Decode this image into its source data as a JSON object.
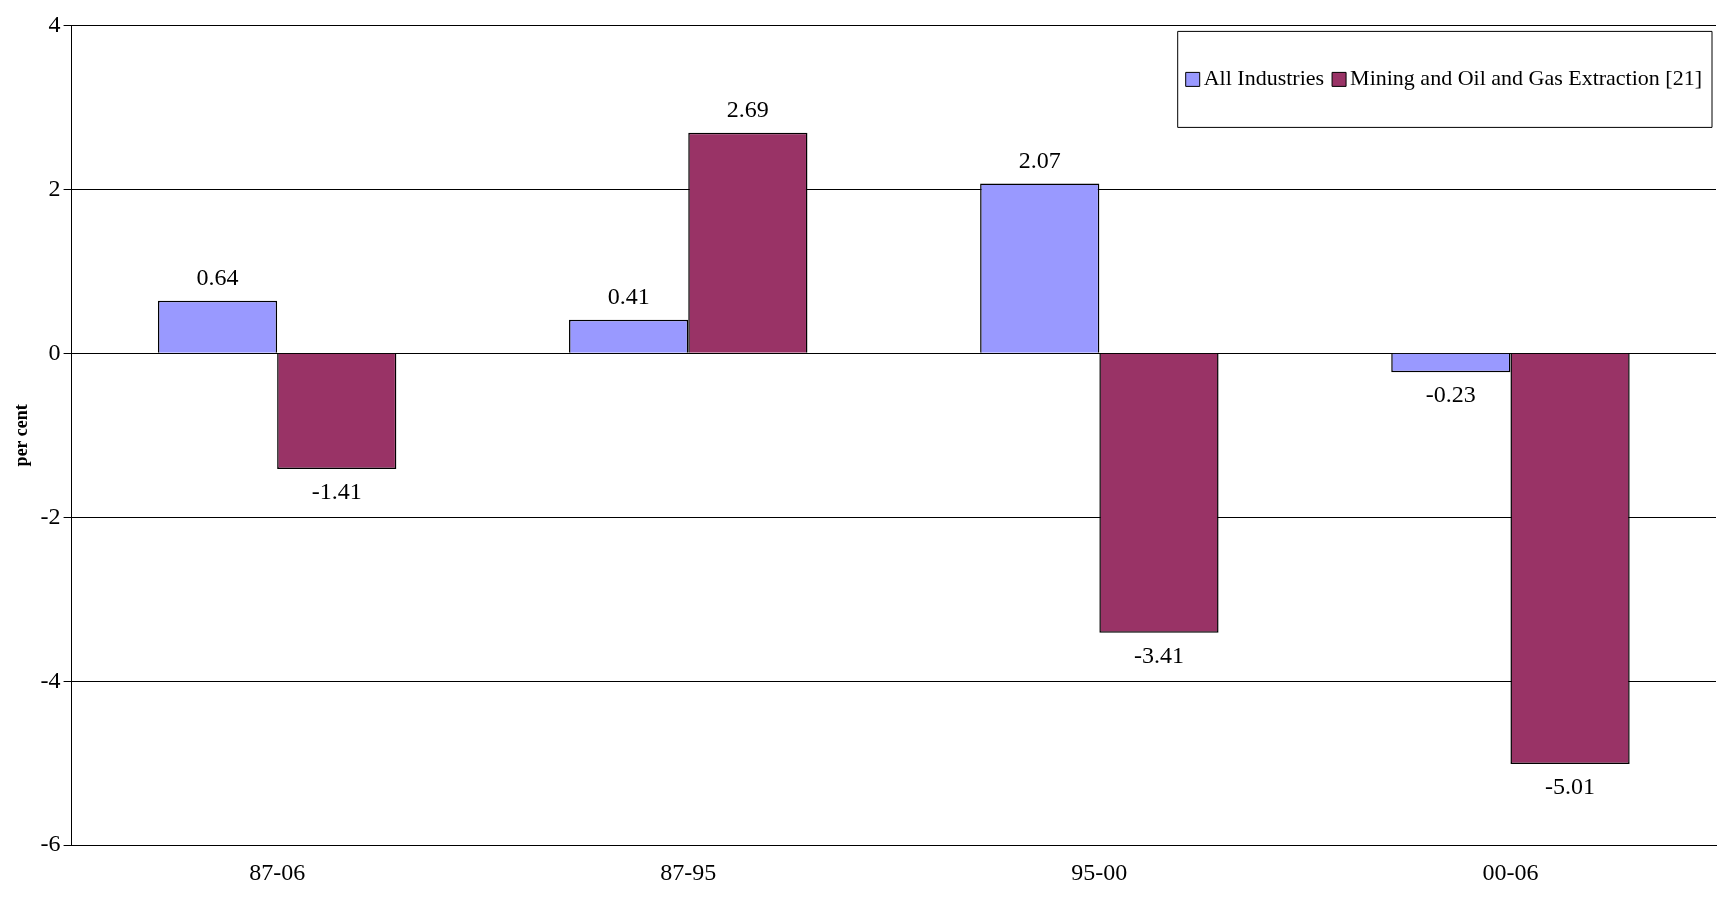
{
  "chart_data": {
    "type": "bar",
    "ylabel": "per cent",
    "categories": [
      "87-06",
      "87-95",
      "95-00",
      "00-06"
    ],
    "series": [
      {
        "name": "All Industries",
        "color": "#9999ff",
        "values": [
          0.64,
          0.41,
          2.07,
          -0.23
        ]
      },
      {
        "name": "Mining and Oil and Gas Extraction [21]",
        "color": "#993366",
        "values": [
          -1.41,
          2.69,
          -3.41,
          -5.01
        ]
      }
    ],
    "ylim": [
      -6,
      4
    ],
    "yticks": [
      -6,
      -4,
      -2,
      0,
      2,
      4
    ],
    "grid": "y",
    "legend": "top right",
    "data_labels": true
  }
}
